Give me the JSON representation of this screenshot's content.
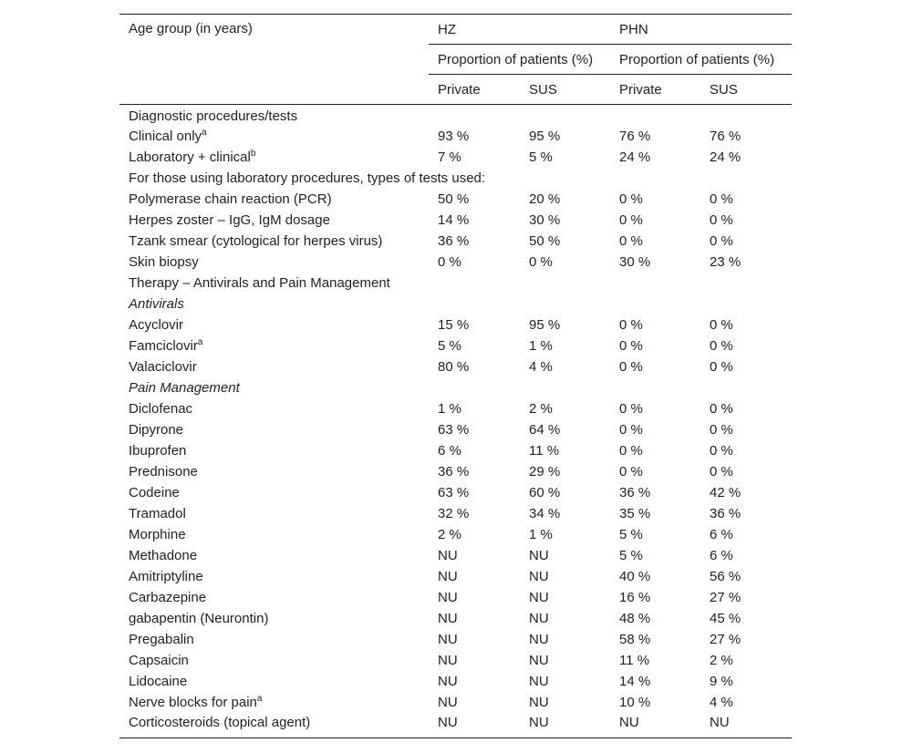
{
  "table": {
    "header": {
      "corner": "Age group (in years)",
      "groups": [
        "HZ",
        "PHN"
      ],
      "subgroups": [
        "Proportion of patients (%)",
        "Proportion of patients (%)"
      ],
      "columns": [
        "Private",
        "SUS",
        "Private",
        "SUS"
      ]
    },
    "rows": [
      {
        "label": "Diagnostic procedures/tests"
      },
      {
        "label": "Clinical only",
        "sup": "a",
        "cells": [
          "93 %",
          "95 %",
          "76 %",
          "76 %"
        ]
      },
      {
        "label": "Laboratory + clinical",
        "sup": "b",
        "cells": [
          "7 %",
          "5 %",
          "24 %",
          "24 %"
        ]
      },
      {
        "label": "For those using laboratory procedures, types of tests used:"
      },
      {
        "label": "Polymerase chain reaction (PCR)",
        "cells": [
          "50 %",
          "20 %",
          "0 %",
          "0 %"
        ]
      },
      {
        "label": "Herpes zoster – IgG, IgM dosage",
        "cells": [
          "14 %",
          "30 %",
          "0 %",
          "0 %"
        ]
      },
      {
        "label": "Tzank smear (cytological for herpes virus)",
        "cells": [
          "36 %",
          "50 %",
          "0 %",
          "0 %"
        ]
      },
      {
        "label": "Skin biopsy",
        "cells": [
          "0 %",
          "0 %",
          "30 %",
          "23 %"
        ]
      },
      {
        "label": "Therapy – Antivirals and Pain Management"
      },
      {
        "label": "Antivirals",
        "italic": true
      },
      {
        "label": "Acyclovir",
        "cells": [
          "15 %",
          "95 %",
          "0 %",
          "0 %"
        ]
      },
      {
        "label": "Famciclovir",
        "sup": "a",
        "cells": [
          "5 %",
          "1 %",
          "0 %",
          "0 %"
        ]
      },
      {
        "label": "Valaciclovir",
        "cells": [
          "80 %",
          "4 %",
          "0 %",
          "0 %"
        ]
      },
      {
        "label": "Pain Management",
        "italic": true
      },
      {
        "label": "Diclofenac",
        "cells": [
          "1 %",
          "2 %",
          "0 %",
          "0 %"
        ]
      },
      {
        "label": "Dipyrone",
        "cells": [
          "63 %",
          "64 %",
          "0 %",
          "0 %"
        ]
      },
      {
        "label": "Ibuprofen",
        "cells": [
          "6 %",
          "11 %",
          "0 %",
          "0 %"
        ]
      },
      {
        "label": "Prednisone",
        "cells": [
          "36 %",
          "29 %",
          "0 %",
          "0 %"
        ]
      },
      {
        "label": "Codeine",
        "cells": [
          "63 %",
          "60 %",
          "36 %",
          "42 %"
        ]
      },
      {
        "label": "Tramadol",
        "cells": [
          "32 %",
          "34 %",
          "35 %",
          "36 %"
        ]
      },
      {
        "label": "Morphine",
        "cells": [
          "2 %",
          "1 %",
          "5 %",
          "6 %"
        ]
      },
      {
        "label": "Methadone",
        "cells": [
          "NU",
          "NU",
          "5 %",
          "6 %"
        ]
      },
      {
        "label": "Amitriptyline",
        "cells": [
          "NU",
          "NU",
          "40 %",
          "56 %"
        ]
      },
      {
        "label": "Carbazepine",
        "cells": [
          "NU",
          "NU",
          "16 %",
          "27 %"
        ]
      },
      {
        "label": "gabapentin (Neurontin)",
        "cells": [
          "NU",
          "NU",
          "48 %",
          "45 %"
        ]
      },
      {
        "label": "Pregabalin",
        "cells": [
          "NU",
          "NU",
          "58 %",
          "27 %"
        ]
      },
      {
        "label": "Capsaicin",
        "cells": [
          "NU",
          "NU",
          "11 %",
          "2 %"
        ]
      },
      {
        "label": "Lidocaine",
        "cells": [
          "NU",
          "NU",
          "14 %",
          "9 %"
        ]
      },
      {
        "label": "Nerve blocks for pain",
        "sup": "a",
        "cells": [
          "NU",
          "NU",
          "10 %",
          "4 %"
        ]
      },
      {
        "label": "Corticosteroids (topical agent)",
        "cells": [
          "NU",
          "NU",
          "NU",
          "NU"
        ]
      }
    ]
  }
}
